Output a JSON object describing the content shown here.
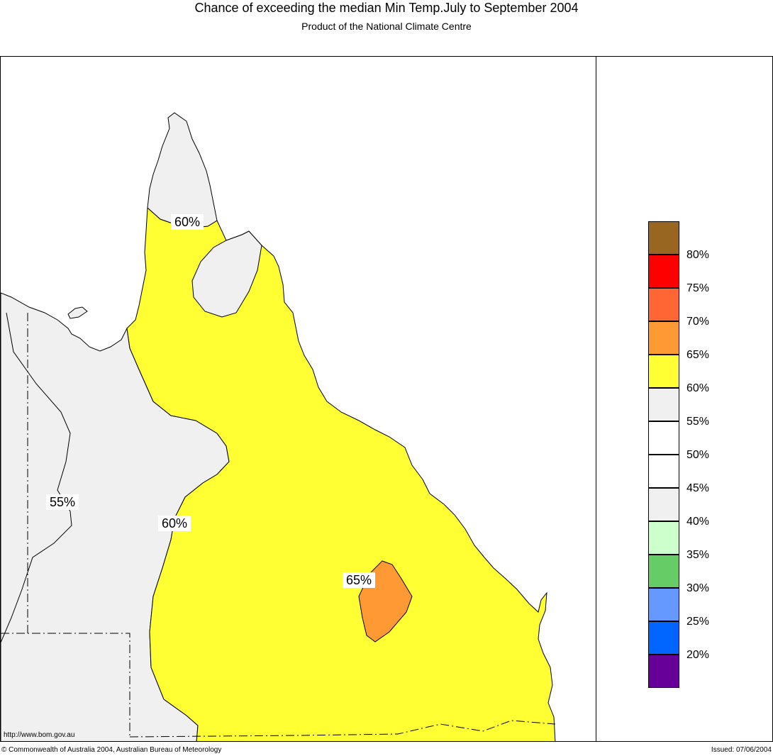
{
  "header": {
    "title": "Chance of exceeding the median Min Temp.July to September 2004",
    "subtitle": "Product of the National Climate Centre"
  },
  "map": {
    "region": "Queensland",
    "fill_colors": {
      "land_60_plus": "#ffff33",
      "land_55_60": "#f0f0f0",
      "land_65_plus": "#ff9933",
      "coast_stroke": "#000000"
    },
    "contour_labels": [
      {
        "text": "60%"
      },
      {
        "text": "55%"
      },
      {
        "text": "60%"
      },
      {
        "text": "65%"
      }
    ]
  },
  "legend": {
    "colors": [
      "#996622",
      "#ff0000",
      "#ff6633",
      "#ff9933",
      "#ffff33",
      "#f0f0f0",
      "#ffffff",
      "#ffffff",
      "#f0f0f0",
      "#ccffcc",
      "#66cc66",
      "#6699ff",
      "#0066ff",
      "#660099"
    ],
    "labels": [
      "80%",
      "75%",
      "70%",
      "65%",
      "60%",
      "55%",
      "50%",
      "45%",
      "40%",
      "35%",
      "30%",
      "25%",
      "20%"
    ]
  },
  "footer": {
    "url": "http://www.bom.gov.au",
    "copyright": "© Commonwealth of Australia 2004, Australian Bureau of Meteorology",
    "issued": "Issued: 07/06/2004"
  }
}
